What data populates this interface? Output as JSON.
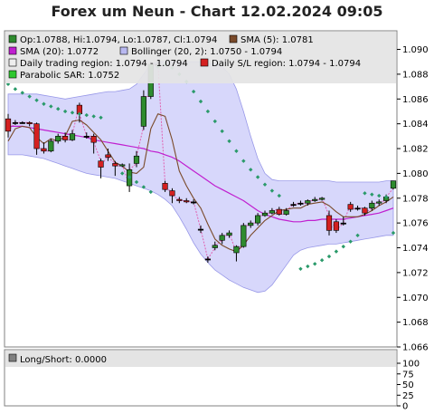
{
  "title": "Forex um Neun - Chart 12.02.2024 09:05",
  "legend": {
    "ohlc": "Op:1.0788, Hi:1.0794, Lo:1.0787, Cl:1.0794",
    "sma5": "SMA (5): 1.0781",
    "sma20": "SMA (20): 1.0772",
    "bollinger": "Bollinger (20, 2): 1.0750 - 1.0794",
    "trading_region": "Daily trading region: 1.0794 - 1.0794",
    "sl_region": "Daily S/L region: 1.0794 - 1.0794",
    "sar": "Parabolic SAR: 1.0752"
  },
  "lower_panel": {
    "label": "Long/Short: 0.0000"
  },
  "colors": {
    "bollinger_fill": "#d0d0fa",
    "bollinger_edge": "#9898e8",
    "sma20": "#c020d0",
    "sma5": "#7a4a2a",
    "sar": "#2a9a6a",
    "bull": "#2e8b2e",
    "bear": "#d42020",
    "connector": "#e060b0"
  },
  "chart_data": [
    {
      "type": "candlestick",
      "ylim": [
        1.066,
        1.0915
      ],
      "yticks": [
        "1.066",
        "1.068",
        "1.070",
        "1.072",
        "1.074",
        "1.076",
        "1.078",
        "1.080",
        "1.082",
        "1.084",
        "1.086",
        "1.088",
        "1.090"
      ],
      "candles": [
        {
          "o": 1.0844,
          "h": 1.0848,
          "l": 1.0829,
          "c": 1.0834
        },
        {
          "o": 1.0841,
          "h": 1.0843,
          "l": 1.0839,
          "c": 1.0841
        },
        {
          "o": 1.0841,
          "h": 1.0842,
          "l": 1.084,
          "c": 1.0841
        },
        {
          "o": 1.0841,
          "h": 1.0842,
          "l": 1.0838,
          "c": 1.084
        },
        {
          "o": 1.084,
          "h": 1.0841,
          "l": 1.0815,
          "c": 1.082
        },
        {
          "o": 1.082,
          "h": 1.0825,
          "l": 1.0816,
          "c": 1.0818
        },
        {
          "o": 1.0818,
          "h": 1.0828,
          "l": 1.0817,
          "c": 1.0826
        },
        {
          "o": 1.0826,
          "h": 1.0832,
          "l": 1.0824,
          "c": 1.083
        },
        {
          "o": 1.083,
          "h": 1.0833,
          "l": 1.0825,
          "c": 1.0827
        },
        {
          "o": 1.0827,
          "h": 1.0835,
          "l": 1.0826,
          "c": 1.0832
        },
        {
          "o": 1.0855,
          "h": 1.0857,
          "l": 1.0841,
          "c": 1.0848
        },
        {
          "o": 1.083,
          "h": 1.0833,
          "l": 1.0828,
          "c": 1.083
        },
        {
          "o": 1.083,
          "h": 1.0832,
          "l": 1.0816,
          "c": 1.0825
        },
        {
          "o": 1.081,
          "h": 1.0812,
          "l": 1.0796,
          "c": 1.0805
        },
        {
          "o": 1.0815,
          "h": 1.082,
          "l": 1.081,
          "c": 1.0813
        },
        {
          "o": 1.0808,
          "h": 1.081,
          "l": 1.0798,
          "c": 1.0806
        },
        {
          "o": 1.0806,
          "h": 1.0808,
          "l": 1.0805,
          "c": 1.0807
        },
        {
          "o": 1.079,
          "h": 1.0808,
          "l": 1.0785,
          "c": 1.0803
        },
        {
          "o": 1.0808,
          "h": 1.0818,
          "l": 1.0805,
          "c": 1.0814
        },
        {
          "o": 1.0838,
          "h": 1.0867,
          "l": 1.0835,
          "c": 1.0862
        },
        {
          "o": 1.0862,
          "h": 1.089,
          "l": 1.086,
          "c": 1.0888
        },
        {
          "o": 1.0888,
          "h": 1.089,
          "l": 1.0886,
          "c": 1.0888
        },
        {
          "o": 1.0792,
          "h": 1.0794,
          "l": 1.0785,
          "c": 1.0787
        },
        {
          "o": 1.0786,
          "h": 1.0788,
          "l": 1.0776,
          "c": 1.0782
        },
        {
          "o": 1.0779,
          "h": 1.0781,
          "l": 1.0776,
          "c": 1.0778
        },
        {
          "o": 1.0778,
          "h": 1.078,
          "l": 1.0776,
          "c": 1.0777
        },
        {
          "o": 1.0777,
          "h": 1.0779,
          "l": 1.0775,
          "c": 1.0777
        },
        {
          "o": 1.0755,
          "h": 1.0758,
          "l": 1.0752,
          "c": 1.0755
        },
        {
          "o": 1.0731,
          "h": 1.0733,
          "l": 1.0728,
          "c": 1.0731
        },
        {
          "o": 1.074,
          "h": 1.0745,
          "l": 1.0738,
          "c": 1.0742
        },
        {
          "o": 1.0746,
          "h": 1.0752,
          "l": 1.0743,
          "c": 1.075
        },
        {
          "o": 1.075,
          "h": 1.0754,
          "l": 1.0748,
          "c": 1.0752
        },
        {
          "o": 1.0736,
          "h": 1.0742,
          "l": 1.0729,
          "c": 1.0741
        },
        {
          "o": 1.0741,
          "h": 1.076,
          "l": 1.074,
          "c": 1.0758
        },
        {
          "o": 1.0758,
          "h": 1.0762,
          "l": 1.0756,
          "c": 1.076
        },
        {
          "o": 1.076,
          "h": 1.0768,
          "l": 1.0758,
          "c": 1.0766
        },
        {
          "o": 1.0766,
          "h": 1.077,
          "l": 1.0765,
          "c": 1.0768
        },
        {
          "o": 1.0768,
          "h": 1.0772,
          "l": 1.0767,
          "c": 1.077
        },
        {
          "o": 1.0771,
          "h": 1.0773,
          "l": 1.0766,
          "c": 1.0767
        },
        {
          "o": 1.0767,
          "h": 1.0772,
          "l": 1.0766,
          "c": 1.077
        },
        {
          "o": 1.0775,
          "h": 1.0777,
          "l": 1.0773,
          "c": 1.0775
        },
        {
          "o": 1.0776,
          "h": 1.0778,
          "l": 1.0774,
          "c": 1.0776
        },
        {
          "o": 1.0776,
          "h": 1.0779,
          "l": 1.0774,
          "c": 1.0778
        },
        {
          "o": 1.0778,
          "h": 1.0781,
          "l": 1.0777,
          "c": 1.0779
        },
        {
          "o": 1.0779,
          "h": 1.0781,
          "l": 1.0778,
          "c": 1.078
        },
        {
          "o": 1.0766,
          "h": 1.077,
          "l": 1.075,
          "c": 1.0754
        },
        {
          "o": 1.0761,
          "h": 1.0763,
          "l": 1.0752,
          "c": 1.0754
        },
        {
          "o": 1.076,
          "h": 1.0765,
          "l": 1.0758,
          "c": 1.076
        },
        {
          "o": 1.0775,
          "h": 1.0777,
          "l": 1.0769,
          "c": 1.0771
        },
        {
          "o": 1.0772,
          "h": 1.0774,
          "l": 1.077,
          "c": 1.0772
        },
        {
          "o": 1.0772,
          "h": 1.0773,
          "l": 1.0766,
          "c": 1.0768
        },
        {
          "o": 1.0772,
          "h": 1.0778,
          "l": 1.077,
          "c": 1.0776
        },
        {
          "o": 1.0776,
          "h": 1.0779,
          "l": 1.0774,
          "c": 1.0777
        },
        {
          "o": 1.0778,
          "h": 1.0783,
          "l": 1.0776,
          "c": 1.0781
        },
        {
          "o": 1.0788,
          "h": 1.0794,
          "l": 1.0787,
          "c": 1.0794
        }
      ],
      "sma5": [
        1.0826,
        1.0836,
        1.0838,
        1.0837,
        1.0829,
        1.0824,
        1.0828,
        1.0826,
        1.083,
        1.0842,
        1.0843,
        1.0839,
        1.0833,
        1.0827,
        1.0818,
        1.0809,
        1.0806,
        1.0801,
        1.08,
        1.0805,
        1.0836,
        1.0848,
        1.0846,
        1.0827,
        1.0802,
        1.079,
        1.078,
        1.0772,
        1.0759,
        1.0747,
        1.0742,
        1.0739,
        1.0737,
        1.0742,
        1.075,
        1.0756,
        1.0762,
        1.0766,
        1.077,
        1.0771,
        1.0772,
        1.0772,
        1.0775,
        1.0776,
        1.0777,
        1.0774,
        1.0769,
        1.0765,
        1.0765,
        1.0765,
        1.0767,
        1.077,
        1.0774,
        1.0777,
        1.0781
      ],
      "sma20": [
        1.0838,
        1.0838,
        1.0838,
        1.0837,
        1.0836,
        1.0835,
        1.0834,
        1.0833,
        1.0832,
        1.0831,
        1.083,
        1.0829,
        1.0827,
        1.0826,
        1.0825,
        1.0824,
        1.0823,
        1.0822,
        1.0821,
        1.082,
        1.0818,
        1.0817,
        1.0815,
        1.0813,
        1.081,
        1.0806,
        1.0802,
        1.0798,
        1.0794,
        1.079,
        1.0787,
        1.0784,
        1.0781,
        1.0778,
        1.0774,
        1.077,
        1.0767,
        1.0765,
        1.0763,
        1.0762,
        1.0761,
        1.0761,
        1.0762,
        1.0762,
        1.0763,
        1.0763,
        1.0763,
        1.0763,
        1.0764,
        1.0765,
        1.0766,
        1.0767,
        1.0768,
        1.077,
        1.0772
      ],
      "bollinger_upper": [
        1.0864,
        1.0864,
        1.0864,
        1.0864,
        1.0864,
        1.0863,
        1.0862,
        1.0861,
        1.086,
        1.0861,
        1.0862,
        1.0863,
        1.0864,
        1.0865,
        1.0866,
        1.0866,
        1.0867,
        1.0868,
        1.0872,
        1.088,
        1.0888,
        1.089,
        1.089,
        1.089,
        1.089,
        1.089,
        1.089,
        1.089,
        1.0889,
        1.0888,
        1.0886,
        1.088,
        1.0868,
        1.085,
        1.083,
        1.0812,
        1.08,
        1.0795,
        1.0794,
        1.0794,
        1.0794,
        1.0794,
        1.0794,
        1.0794,
        1.0794,
        1.0794,
        1.0793,
        1.0793,
        1.0793,
        1.0793,
        1.0793,
        1.0793,
        1.0793,
        1.0794,
        1.0794
      ],
      "bollinger_lower": [
        1.0815,
        1.0815,
        1.0815,
        1.0814,
        1.0813,
        1.0812,
        1.081,
        1.0808,
        1.0806,
        1.0804,
        1.0802,
        1.08,
        1.0799,
        1.0798,
        1.0797,
        1.0796,
        1.0794,
        1.0792,
        1.079,
        1.0788,
        1.0786,
        1.0783,
        1.0779,
        1.0774,
        1.0765,
        1.0755,
        1.0744,
        1.0735,
        1.0728,
        1.0722,
        1.0718,
        1.0714,
        1.0711,
        1.0708,
        1.0706,
        1.0704,
        1.0705,
        1.071,
        1.0718,
        1.0726,
        1.0734,
        1.0738,
        1.074,
        1.0741,
        1.0742,
        1.0743,
        1.0743,
        1.0744,
        1.0745,
        1.0746,
        1.0747,
        1.0748,
        1.0749,
        1.075,
        1.075
      ],
      "sar": [
        1.0872,
        1.0868,
        1.0865,
        1.0862,
        1.0859,
        1.0856,
        1.0854,
        1.0852,
        1.085,
        1.0849,
        1.0848,
        1.0847,
        1.0846,
        1.0845,
        null,
        null,
        1.08,
        1.0797,
        1.0793,
        1.0789,
        1.0785,
        1.0886,
        1.0888,
        1.0885,
        1.088,
        1.0874,
        1.0866,
        1.0858,
        1.085,
        1.0842,
        1.0834,
        1.0826,
        1.0818,
        1.081,
        1.0803,
        1.0797,
        1.0791,
        1.0786,
        1.0782,
        null,
        null,
        1.0723,
        1.0725,
        1.0727,
        1.073,
        1.0733,
        1.0737,
        1.0741,
        1.0745,
        1.075,
        1.0784,
        1.0783,
        1.0782,
        1.0781,
        1.0752
      ]
    },
    {
      "type": "line",
      "name": "Long/Short",
      "ylim": [
        0,
        100
      ],
      "yticks": [
        "0",
        "25",
        "50",
        "75",
        "100"
      ],
      "value": 0
    }
  ]
}
